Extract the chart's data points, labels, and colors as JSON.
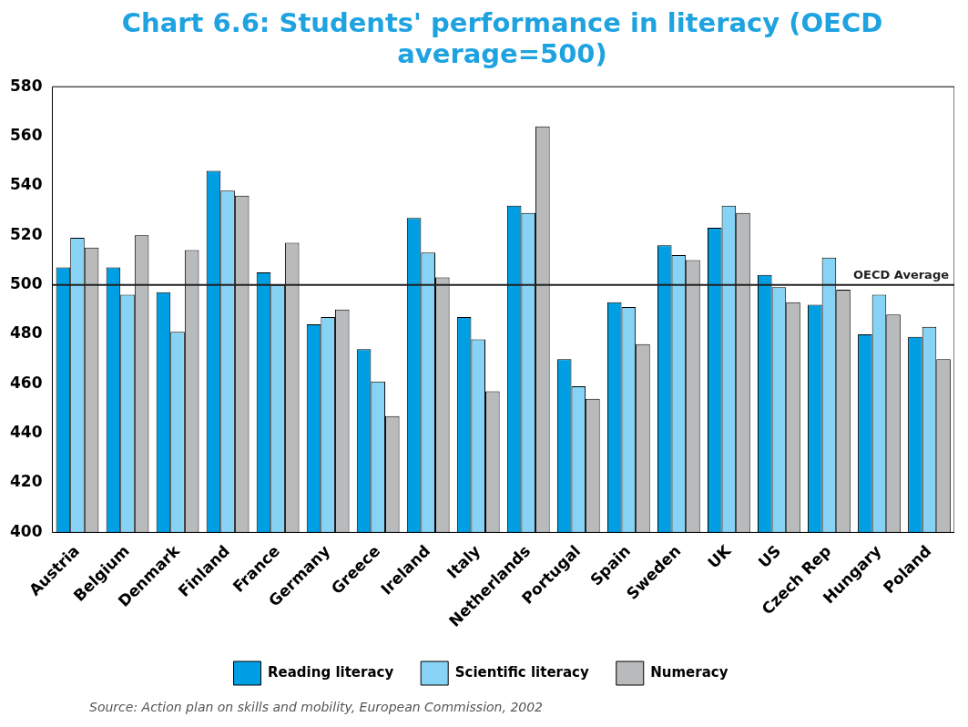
{
  "chart_data": {
    "type": "bar",
    "title": "Chart 6.6: Students' performance in literacy (OECD average=500)",
    "categories": [
      "Austria",
      "Belgium",
      "Denmark",
      "Finland",
      "France",
      "Germany",
      "Greece",
      "Ireland",
      "Italy",
      "Netherlands",
      "Portugal",
      "Spain",
      "Sweden",
      "UK",
      "US",
      "Czech Rep",
      "Hungary",
      "Poland"
    ],
    "series": [
      {
        "name": "Reading literacy",
        "color": "#009fe3",
        "values": [
          507,
          507,
          497,
          546,
          505,
          484,
          474,
          527,
          487,
          532,
          470,
          493,
          516,
          523,
          504,
          492,
          480,
          479
        ]
      },
      {
        "name": "Scientific literacy",
        "color": "#87d3f5",
        "values": [
          519,
          496,
          481,
          538,
          500,
          487,
          461,
          513,
          478,
          529,
          459,
          491,
          512,
          532,
          499,
          511,
          496,
          483
        ]
      },
      {
        "name": "Numeracy",
        "color": "#b9babc",
        "values": [
          515,
          520,
          514,
          536,
          517,
          490,
          447,
          503,
          457,
          564,
          454,
          476,
          510,
          529,
          493,
          498,
          488,
          470
        ]
      }
    ],
    "ylim": [
      400,
      580
    ],
    "yticks": [
      400,
      420,
      440,
      460,
      480,
      500,
      520,
      540,
      560,
      580
    ],
    "ref_lines": [
      {
        "axis": "y",
        "value": 500,
        "label": "OECD Average",
        "color": "#222222"
      }
    ],
    "legend": "bottom",
    "grid": false,
    "annotations": [
      "Source: Action plan on skills and mobility, European Commission, 2002"
    ]
  }
}
